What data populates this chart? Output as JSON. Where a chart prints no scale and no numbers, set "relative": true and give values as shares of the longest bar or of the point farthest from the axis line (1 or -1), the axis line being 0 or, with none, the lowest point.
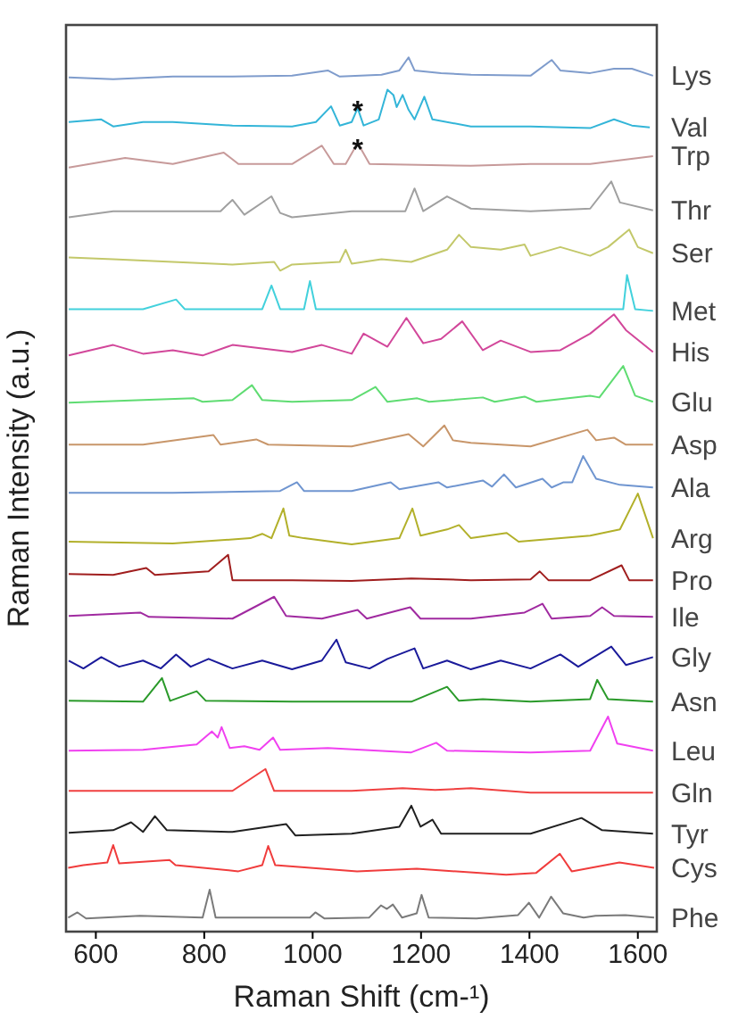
{
  "chart_data": {
    "type": "line",
    "xlabel": "Raman Shift (cm-¹)",
    "ylabel": "Raman Intensity (a.u.)",
    "relative": true,
    "tick_labels": "x",
    "xlim": [
      545,
      1635
    ],
    "xticks": [
      600,
      800,
      1000,
      1200,
      1400,
      1600
    ],
    "annotations": [
      {
        "text": "*",
        "x": 1083,
        "y": 0.951
      },
      {
        "text": "*",
        "x": 1083,
        "y": 0.907
      }
    ],
    "series": [
      {
        "name": "Lys",
        "color": "#7f9ccc",
        "x": [
          550,
          632,
          742,
          852,
          962,
          1028,
          1050,
          1127,
          1160,
          1177,
          1188,
          1237,
          1292,
          1402,
          1441,
          1457,
          1512,
          1556,
          1589,
          1628
        ],
        "values": [
          0.977,
          0.975,
          0.978,
          0.978,
          0.979,
          0.985,
          0.978,
          0.98,
          0.985,
          1,
          0.985,
          0.982,
          0.98,
          0.979,
          0.997,
          0.985,
          0.982,
          0.987,
          0.987,
          0.979
        ]
      },
      {
        "name": "Val",
        "color": "#33b5d8",
        "x": [
          550,
          610,
          632,
          687,
          742,
          852,
          962,
          1006,
          1034,
          1050,
          1072,
          1083,
          1094,
          1122,
          1138,
          1149,
          1155,
          1166,
          1177,
          1188,
          1206,
          1221,
          1292,
          1402,
          1512,
          1556,
          1589,
          1622
        ],
        "values": [
          0.926,
          0.929,
          0.921,
          0.926,
          0.926,
          0.922,
          0.921,
          0.926,
          0.944,
          0.922,
          0.926,
          0.942,
          0.922,
          0.929,
          0.963,
          0.957,
          0.943,
          0.957,
          0.94,
          0.929,
          0.955,
          0.929,
          0.921,
          0.921,
          0.919,
          0.929,
          0.922,
          0.92
        ]
      },
      {
        "name": "Trp",
        "color": "#c79a9a",
        "x": [
          550,
          654,
          742,
          836,
          863,
          962,
          1017,
          1039,
          1061,
          1083,
          1105,
          1292,
          1402,
          1512,
          1628
        ],
        "values": [
          0.874,
          0.885,
          0.878,
          0.891,
          0.878,
          0.878,
          0.899,
          0.878,
          0.878,
          0.902,
          0.878,
          0.876,
          0.878,
          0.878,
          0.887
        ]
      },
      {
        "name": "Thr",
        "color": "#a0a0a0",
        "x": [
          550,
          632,
          742,
          830,
          852,
          874,
          924,
          940,
          962,
          1072,
          1171,
          1188,
          1204,
          1248,
          1292,
          1402,
          1512,
          1551,
          1567,
          1628
        ],
        "values": [
          0.817,
          0.824,
          0.824,
          0.824,
          0.837,
          0.82,
          0.841,
          0.822,
          0.817,
          0.824,
          0.824,
          0.85,
          0.824,
          0.841,
          0.827,
          0.824,
          0.827,
          0.858,
          0.834,
          0.825
        ]
      },
      {
        "name": "Ser",
        "color": "#c3c86a",
        "x": [
          550,
          632,
          742,
          852,
          929,
          940,
          962,
          1050,
          1061,
          1072,
          1127,
          1182,
          1248,
          1270,
          1292,
          1347,
          1391,
          1402,
          1457,
          1512,
          1545,
          1584,
          1600,
          1628
        ],
        "values": [
          0.771,
          0.769,
          0.766,
          0.763,
          0.766,
          0.756,
          0.763,
          0.766,
          0.78,
          0.764,
          0.769,
          0.766,
          0.78,
          0.797,
          0.783,
          0.78,
          0.786,
          0.773,
          0.783,
          0.773,
          0.783,
          0.803,
          0.783,
          0.776
        ]
      },
      {
        "name": "Met",
        "color": "#42d1dc",
        "x": [
          550,
          687,
          748,
          764,
          907,
          924,
          940,
          984,
          995,
          1006,
          1292,
          1512,
          1573,
          1580,
          1595,
          1628
        ],
        "values": [
          0.712,
          0.712,
          0.723,
          0.712,
          0.712,
          0.739,
          0.712,
          0.712,
          0.744,
          0.712,
          0.712,
          0.712,
          0.712,
          0.751,
          0.712,
          0.71
        ]
      },
      {
        "name": "His",
        "color": "#d2479a",
        "x": [
          550,
          632,
          687,
          742,
          797,
          852,
          907,
          962,
          1017,
          1072,
          1094,
          1138,
          1173,
          1204,
          1237,
          1276,
          1314,
          1347,
          1402,
          1457,
          1512,
          1556,
          1578,
          1628
        ],
        "values": [
          0.659,
          0.671,
          0.661,
          0.665,
          0.659,
          0.671,
          0.667,
          0.663,
          0.671,
          0.661,
          0.684,
          0.669,
          0.702,
          0.673,
          0.678,
          0.698,
          0.665,
          0.676,
          0.663,
          0.665,
          0.684,
          0.706,
          0.688,
          0.663
        ]
      },
      {
        "name": "Glu",
        "color": "#5fdc72",
        "x": [
          550,
          687,
          781,
          797,
          852,
          888,
          907,
          962,
          1072,
          1116,
          1138,
          1193,
          1215,
          1314,
          1336,
          1391,
          1413,
          1512,
          1529,
          1573,
          1595,
          1628
        ],
        "values": [
          0.605,
          0.608,
          0.61,
          0.606,
          0.608,
          0.625,
          0.608,
          0.606,
          0.608,
          0.623,
          0.606,
          0.61,
          0.606,
          0.611,
          0.606,
          0.612,
          0.606,
          0.613,
          0.611,
          0.647,
          0.613,
          0.606
        ]
      },
      {
        "name": "Asp",
        "color": "#c8966a",
        "x": [
          550,
          687,
          817,
          830,
          896,
          918,
          1072,
          1177,
          1204,
          1243,
          1259,
          1292,
          1402,
          1507,
          1523,
          1556,
          1578,
          1628
        ],
        "values": [
          0.557,
          0.557,
          0.568,
          0.557,
          0.563,
          0.557,
          0.555,
          0.569,
          0.555,
          0.579,
          0.562,
          0.559,
          0.555,
          0.574,
          0.562,
          0.565,
          0.557,
          0.557
        ]
      },
      {
        "name": "Ala",
        "color": "#6f95d0",
        "x": [
          550,
          742,
          940,
          971,
          984,
          1072,
          1144,
          1160,
          1232,
          1248,
          1314,
          1331,
          1353,
          1375,
          1424,
          1441,
          1463,
          1479,
          1499,
          1523,
          1567,
          1628
        ],
        "values": [
          0.502,
          0.502,
          0.504,
          0.514,
          0.504,
          0.504,
          0.514,
          0.506,
          0.514,
          0.508,
          0.516,
          0.509,
          0.523,
          0.508,
          0.518,
          0.508,
          0.514,
          0.514,
          0.544,
          0.518,
          0.511,
          0.508
        ]
      },
      {
        "name": "Arg",
        "color": "#b2b02a",
        "x": [
          550,
          742,
          885,
          907,
          924,
          946,
          957,
          984,
          1072,
          1160,
          1184,
          1199,
          1248,
          1270,
          1292,
          1358,
          1380,
          1512,
          1567,
          1600,
          1628
        ],
        "values": [
          0.446,
          0.444,
          0.45,
          0.455,
          0.45,
          0.484,
          0.453,
          0.45,
          0.443,
          0.45,
          0.484,
          0.453,
          0.46,
          0.465,
          0.45,
          0.456,
          0.446,
          0.453,
          0.46,
          0.501,
          0.45
        ]
      },
      {
        "name": "Pro",
        "color": "#a01e1e",
        "x": [
          550,
          632,
          693,
          709,
          808,
          844,
          852,
          962,
          1072,
          1182,
          1292,
          1402,
          1419,
          1435,
          1512,
          1570,
          1584,
          1628
        ],
        "values": [
          0.409,
          0.408,
          0.416,
          0.408,
          0.412,
          0.431,
          0.402,
          0.402,
          0.401,
          0.404,
          0.402,
          0.403,
          0.412,
          0.402,
          0.402,
          0.419,
          0.402,
          0.402
        ]
      },
      {
        "name": "Ile",
        "color": "#a02aa0",
        "x": [
          550,
          682,
          698,
          852,
          929,
          951,
          1017,
          1083,
          1100,
          1180,
          1199,
          1292,
          1391,
          1424,
          1441,
          1512,
          1534,
          1556,
          1628
        ],
        "values": [
          0.361,
          0.365,
          0.36,
          0.358,
          0.383,
          0.361,
          0.358,
          0.368,
          0.358,
          0.371,
          0.358,
          0.358,
          0.365,
          0.375,
          0.358,
          0.361,
          0.371,
          0.361,
          0.36
        ]
      },
      {
        "name": "Gly",
        "color": "#1a1a9a",
        "x": [
          550,
          577,
          610,
          643,
          687,
          720,
          748,
          775,
          808,
          852,
          907,
          962,
          1017,
          1044,
          1061,
          1105,
          1138,
          1188,
          1204,
          1248,
          1292,
          1347,
          1402,
          1457,
          1490,
          1551,
          1578,
          1628
        ],
        "values": [
          0.31,
          0.301,
          0.314,
          0.303,
          0.31,
          0.301,
          0.317,
          0.303,
          0.312,
          0.301,
          0.31,
          0.3,
          0.31,
          0.334,
          0.308,
          0.301,
          0.312,
          0.324,
          0.301,
          0.31,
          0.3,
          0.31,
          0.301,
          0.317,
          0.303,
          0.326,
          0.305,
          0.314
        ]
      },
      {
        "name": "Asn",
        "color": "#2a9a2a",
        "x": [
          550,
          687,
          722,
          737,
          786,
          803,
          962,
          1182,
          1248,
          1270,
          1314,
          1402,
          1512,
          1525,
          1545,
          1628
        ],
        "values": [
          0.264,
          0.263,
          0.29,
          0.264,
          0.275,
          0.264,
          0.263,
          0.263,
          0.28,
          0.264,
          0.266,
          0.263,
          0.266,
          0.288,
          0.266,
          0.263
        ]
      },
      {
        "name": "Leu",
        "color": "#f040f0",
        "x": [
          550,
          687,
          786,
          814,
          825,
          832,
          847,
          874,
          902,
          927,
          940,
          1028,
          1182,
          1228,
          1248,
          1402,
          1512,
          1545,
          1562,
          1628
        ],
        "values": [
          0.207,
          0.208,
          0.214,
          0.229,
          0.222,
          0.234,
          0.21,
          0.212,
          0.208,
          0.222,
          0.208,
          0.21,
          0.205,
          0.216,
          0.207,
          0.205,
          0.207,
          0.246,
          0.215,
          0.207
        ]
      },
      {
        "name": "Gln",
        "color": "#f04040",
        "x": [
          550,
          742,
          852,
          913,
          929,
          1072,
          1166,
          1226,
          1292,
          1402,
          1628
        ],
        "values": [
          0.161,
          0.161,
          0.161,
          0.186,
          0.161,
          0.161,
          0.164,
          0.162,
          0.164,
          0.159,
          0.159
        ]
      },
      {
        "name": "Tyr",
        "color": "#202020",
        "x": [
          550,
          632,
          665,
          687,
          709,
          731,
          852,
          951,
          968,
          1072,
          1160,
          1182,
          1199,
          1221,
          1237,
          1402,
          1496,
          1534,
          1628
        ],
        "values": [
          0.113,
          0.116,
          0.125,
          0.114,
          0.132,
          0.116,
          0.114,
          0.123,
          0.11,
          0.112,
          0.12,
          0.144,
          0.12,
          0.128,
          0.112,
          0.112,
          0.13,
          0.116,
          0.112
        ]
      },
      {
        "name": "Cys",
        "color": "#f03c3c",
        "x": [
          549,
          577,
          621,
          632,
          643,
          736,
          747,
          863,
          907,
          918,
          931,
          1082,
          1192,
          1357,
          1412,
          1456,
          1478,
          1566,
          1630
        ],
        "values": [
          0.073,
          0.076,
          0.079,
          0.099,
          0.078,
          0.082,
          0.076,
          0.069,
          0.076,
          0.098,
          0.076,
          0.069,
          0.072,
          0.065,
          0.067,
          0.089,
          0.069,
          0.079,
          0.073
        ]
      },
      {
        "name": "Phe",
        "color": "#7a7a7a",
        "x": [
          549,
          566,
          582,
          681,
          797,
          810,
          821,
          995,
          1005,
          1022,
          1104,
          1126,
          1137,
          1148,
          1165,
          1192,
          1201,
          1214,
          1302,
          1379,
          1399,
          1418,
          1440,
          1462,
          1500,
          1522,
          1577,
          1630
        ],
        "values": [
          0.016,
          0.022,
          0.015,
          0.018,
          0.016,
          0.048,
          0.016,
          0.016,
          0.022,
          0.015,
          0.016,
          0.03,
          0.026,
          0.031,
          0.016,
          0.021,
          0.042,
          0.016,
          0.015,
          0.019,
          0.033,
          0.016,
          0.04,
          0.021,
          0.016,
          0.018,
          0.019,
          0.016
        ]
      }
    ]
  }
}
